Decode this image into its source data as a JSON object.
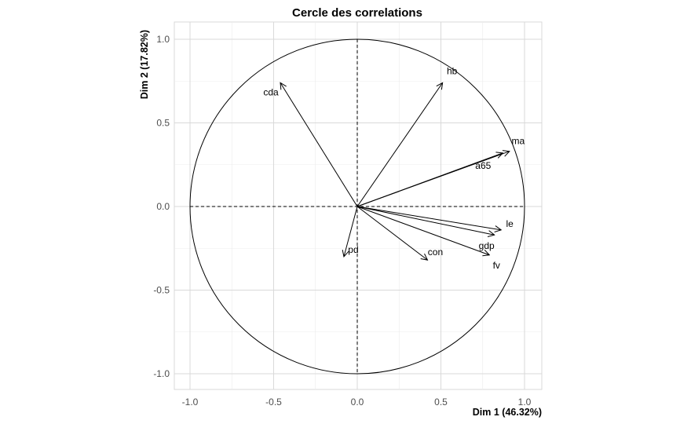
{
  "chart_data": {
    "type": "scatter",
    "title": "Cercle des correlations",
    "xlabel": "Dim 1 (46.32%)",
    "ylabel": "Dim 2 (17.82%)",
    "xlim": [
      -1.1,
      1.1
    ],
    "ylim": [
      -1.1,
      1.1
    ],
    "xticks": [
      -1.0,
      -0.5,
      0.0,
      0.5,
      1.0
    ],
    "yticks": [
      -1.0,
      -0.5,
      0.0,
      0.5,
      1.0
    ],
    "xtick_labels": [
      "-1.0",
      "-0.5",
      "0.0",
      "0.5",
      "1.0"
    ],
    "ytick_labels": [
      "-1.0",
      "-0.5",
      "0.0",
      "0.5",
      "1.0"
    ],
    "grid": true,
    "unit_circle": true,
    "variables": [
      {
        "name": "hb",
        "x": 0.51,
        "y": 0.74
      },
      {
        "name": "cda",
        "x": -0.46,
        "y": 0.74
      },
      {
        "name": "ma",
        "x": 0.91,
        "y": 0.33
      },
      {
        "name": "a65",
        "x": 0.87,
        "y": 0.32
      },
      {
        "name": "le",
        "x": 0.86,
        "y": -0.14
      },
      {
        "name": "gdp",
        "x": 0.82,
        "y": -0.17
      },
      {
        "name": "fv",
        "x": 0.79,
        "y": -0.29
      },
      {
        "name": "con",
        "x": 0.42,
        "y": -0.32
      },
      {
        "name": "pd",
        "x": -0.08,
        "y": -0.3
      }
    ]
  }
}
